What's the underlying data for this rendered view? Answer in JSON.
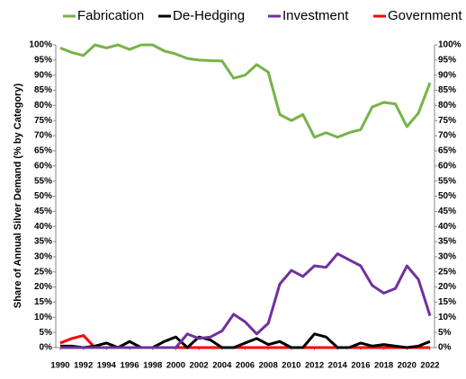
{
  "chart_data": {
    "type": "line",
    "y_axis_label": "Share of Annual Silver Demand (% by Category)",
    "x": [
      1990,
      1991,
      1992,
      1993,
      1994,
      1995,
      1996,
      1997,
      1998,
      1999,
      2000,
      2001,
      2002,
      2003,
      2004,
      2005,
      2006,
      2007,
      2008,
      2009,
      2010,
      2011,
      2012,
      2013,
      2014,
      2015,
      2016,
      2017,
      2018,
      2019,
      2020,
      2021,
      2022
    ],
    "xlim": [
      1990,
      2022
    ],
    "xticks": [
      1990,
      1992,
      1994,
      1996,
      1998,
      2000,
      2002,
      2004,
      2006,
      2008,
      2010,
      2012,
      2014,
      2016,
      2018,
      2020,
      2022
    ],
    "ylim": [
      0,
      100
    ],
    "yticks": [
      {
        "value": 0,
        "label": "0%"
      },
      {
        "value": 5,
        "label": "5%"
      },
      {
        "value": 10,
        "label": "10%"
      },
      {
        "value": 15,
        "label": "15%"
      },
      {
        "value": 20,
        "label": "20%"
      },
      {
        "value": 25,
        "label": "25%"
      },
      {
        "value": 30,
        "label": "30%"
      },
      {
        "value": 35,
        "label": "35%"
      },
      {
        "value": 40,
        "label": "40%"
      },
      {
        "value": 45,
        "label": "45%"
      },
      {
        "value": 50,
        "label": "50%"
      },
      {
        "value": 55,
        "label": "55%"
      },
      {
        "value": 60,
        "label": "60%"
      },
      {
        "value": 65,
        "label": "65%"
      },
      {
        "value": 70,
        "label": "70%"
      },
      {
        "value": 75,
        "label": "75%"
      },
      {
        "value": 80,
        "label": "80%"
      },
      {
        "value": 85,
        "label": "85%"
      },
      {
        "value": 90,
        "label": "90%"
      },
      {
        "value": 95,
        "label": "95%"
      },
      {
        "value": 100,
        "label": "100%"
      }
    ],
    "y2lim": [
      0,
      100
    ],
    "y2ticks": [
      {
        "value": 0,
        "label": "0%"
      },
      {
        "value": 5,
        "label": "5%"
      },
      {
        "value": 10,
        "label": "10%"
      },
      {
        "value": 15,
        "label": "15%"
      },
      {
        "value": 20,
        "label": "20%"
      },
      {
        "value": 25,
        "label": "25%"
      },
      {
        "value": 30,
        "label": "30%"
      },
      {
        "value": 35,
        "label": "35%"
      },
      {
        "value": 40,
        "label": "40%"
      },
      {
        "value": 45,
        "label": "45%"
      },
      {
        "value": 50,
        "label": "50%"
      },
      {
        "value": 55,
        "label": "55%"
      },
      {
        "value": 60,
        "label": "60%"
      },
      {
        "value": 65,
        "label": "65%"
      },
      {
        "value": 70,
        "label": "70%"
      },
      {
        "value": 75,
        "label": "75%"
      },
      {
        "value": 80,
        "label": "80%"
      },
      {
        "value": 85,
        "label": "85%"
      },
      {
        "value": 90,
        "label": "90%"
      },
      {
        "value": 95,
        "label": "95%"
      },
      {
        "value": 100,
        "label": "100%"
      }
    ],
    "legend": "top",
    "series": [
      {
        "name": "Fabrication",
        "color": "#77b347",
        "values": [
          99,
          97.5,
          96.5,
          100,
          99,
          100,
          98.5,
          100,
          100,
          98,
          97,
          95.5,
          95,
          94.8,
          94.7,
          89,
          90,
          93.5,
          91,
          77,
          75,
          77,
          69.5,
          71,
          69.5,
          71,
          72,
          79.5,
          81,
          80.5,
          73,
          77.5,
          87.5
        ]
      },
      {
        "name": "De-Hedging",
        "color": "#000000",
        "values": [
          0.5,
          0.5,
          0,
          0.5,
          1.5,
          0,
          2,
          0,
          0,
          2,
          3.5,
          0,
          3.5,
          2.5,
          0,
          0,
          1.5,
          3,
          1,
          2,
          0,
          0,
          4.5,
          3.5,
          0,
          0,
          1.5,
          0.5,
          1,
          0.5,
          0,
          0.5,
          2
        ]
      },
      {
        "name": "Investment",
        "color": "#7030a0",
        "values": [
          0,
          0,
          0,
          0,
          0,
          0,
          0,
          0,
          0,
          0,
          0,
          4.5,
          3,
          3.5,
          5.5,
          11,
          8.5,
          4.5,
          8,
          21,
          25.5,
          23.5,
          27,
          26.5,
          31,
          29,
          27,
          20.5,
          18,
          19.5,
          27,
          22.5,
          10.5
        ]
      },
      {
        "name": "Government",
        "color": "#ff0000",
        "values": [
          1.5,
          3,
          4,
          0,
          0,
          0,
          0,
          0,
          0,
          0,
          0,
          0,
          0,
          0,
          0,
          0,
          0,
          0,
          0,
          0,
          0,
          0,
          0,
          0,
          0,
          0,
          0,
          0,
          0,
          0,
          0,
          0,
          0
        ]
      }
    ]
  }
}
